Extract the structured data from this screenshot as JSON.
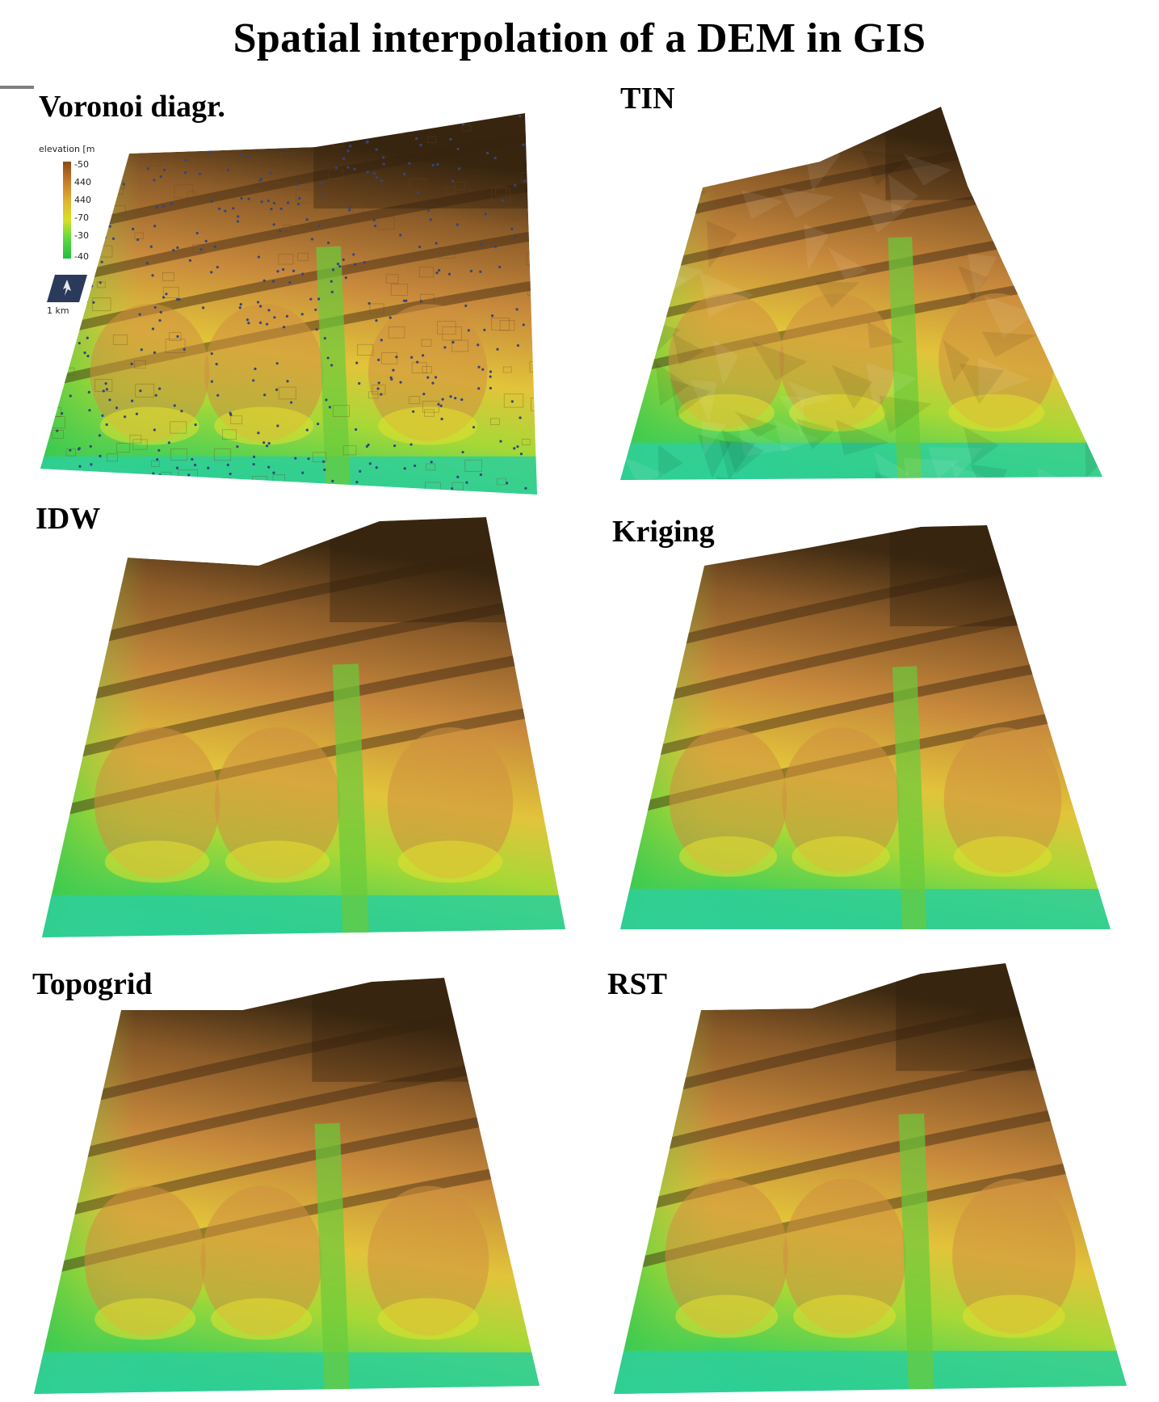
{
  "title": "Spatial interpolation of a DEM in GIS",
  "panels": [
    {
      "label": "Voronoi diagr."
    },
    {
      "label": "TIN"
    },
    {
      "label": "IDW"
    },
    {
      "label": "Kriging"
    },
    {
      "label": "Topogrid"
    },
    {
      "label": "RST"
    }
  ],
  "legend": {
    "caption": "elevation [m",
    "ticks": [
      "-50",
      "440",
      "440",
      "-70",
      "-30",
      "-40"
    ],
    "scale": "1 km"
  },
  "colors": {
    "low": "#26d08a",
    "mid_green": "#5ccc3a",
    "yellow": "#e0d028",
    "orange": "#c98a3a",
    "brown": "#7a4a20",
    "dark": "#3a2a14",
    "points": "#3a4a8a"
  }
}
